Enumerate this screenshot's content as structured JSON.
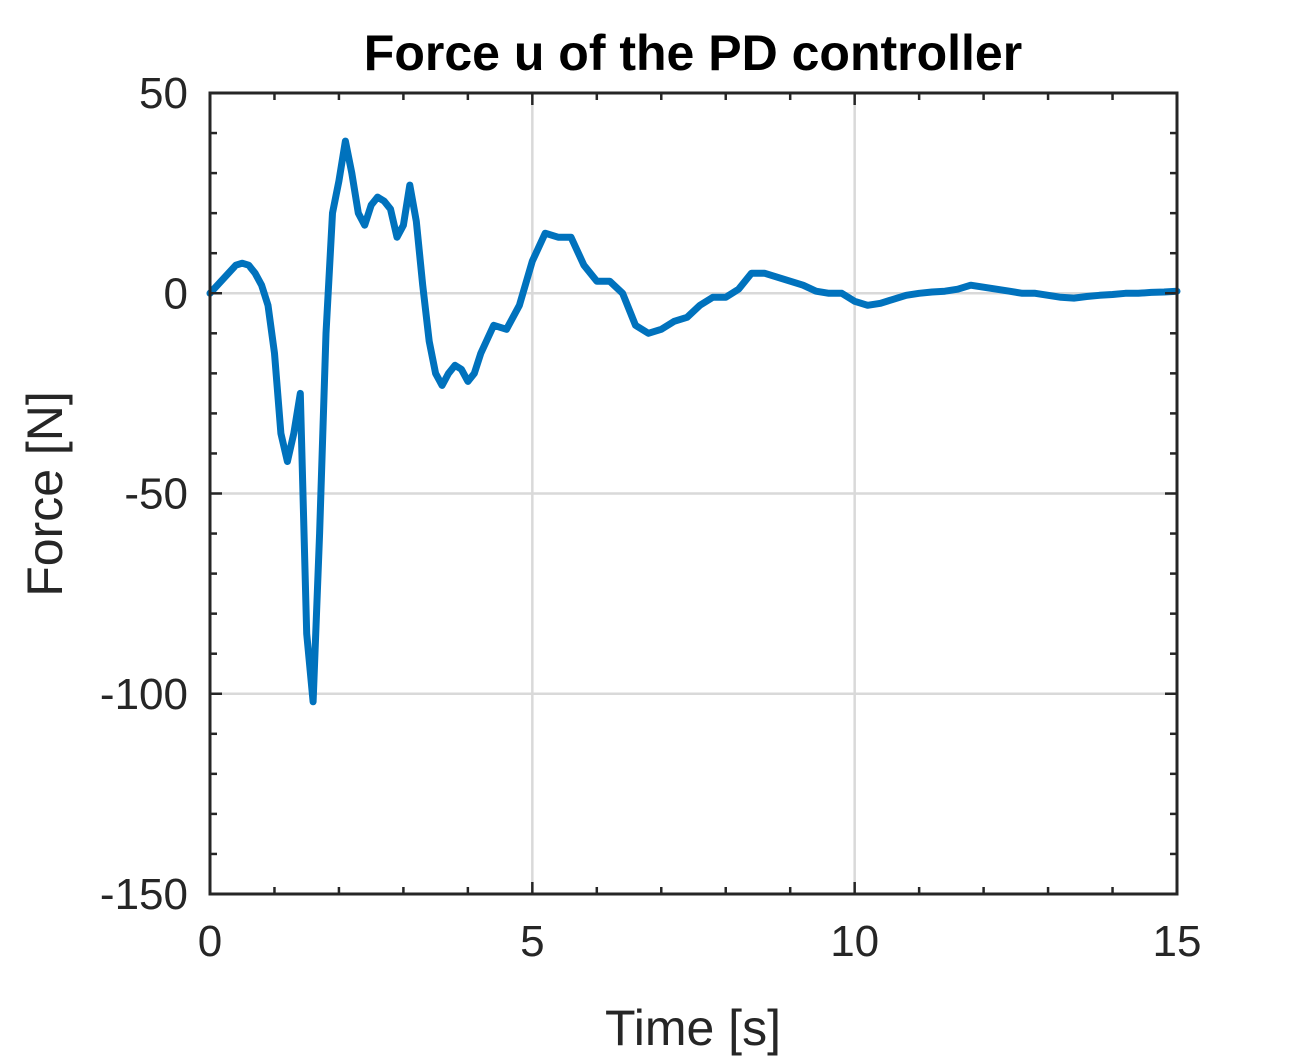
{
  "chart_data": {
    "type": "line",
    "title": "Force u of the PD controller",
    "xlabel": "Time [s]",
    "ylabel": "Force [N]",
    "xlim": [
      0,
      15
    ],
    "ylim": [
      -150,
      50
    ],
    "xticks": [
      0,
      5,
      10,
      15
    ],
    "yticks": [
      -150,
      -100,
      -50,
      0,
      50
    ],
    "xtick_labels": [
      "0",
      "5",
      "10",
      "15"
    ],
    "ytick_labels": [
      "-150",
      "-100",
      "-50",
      "0",
      "50"
    ],
    "grid": true,
    "line_color": "#0072BD",
    "series": [
      {
        "x": [
          0,
          0.2,
          0.4,
          0.5,
          0.6,
          0.7,
          0.8,
          0.9,
          1.0,
          1.1,
          1.2,
          1.3,
          1.4,
          1.5,
          1.6,
          1.7,
          1.8,
          1.9,
          2.0,
          2.1,
          2.2,
          2.3,
          2.4,
          2.5,
          2.6,
          2.7,
          2.8,
          2.9,
          3.0,
          3.1,
          3.2,
          3.3,
          3.4,
          3.5,
          3.6,
          3.7,
          3.8,
          3.9,
          4.0,
          4.1,
          4.2,
          4.4,
          4.6,
          4.8,
          5.0,
          5.2,
          5.4,
          5.6,
          5.8,
          6.0,
          6.2,
          6.4,
          6.6,
          6.8,
          7.0,
          7.2,
          7.4,
          7.6,
          7.8,
          8.0,
          8.2,
          8.4,
          8.6,
          8.8,
          9.0,
          9.2,
          9.4,
          9.6,
          9.8,
          10.0,
          10.2,
          10.4,
          10.6,
          10.8,
          11.0,
          11.2,
          11.4,
          11.6,
          11.8,
          12.0,
          12.2,
          12.4,
          12.6,
          12.8,
          13.0,
          13.2,
          13.4,
          13.6,
          13.8,
          14.0,
          14.2,
          14.4,
          14.6,
          14.8,
          15.0
        ],
        "y": [
          0,
          3.5,
          7,
          7.5,
          7,
          5,
          2,
          -3,
          -15,
          -35,
          -42,
          -35,
          -25,
          -85,
          -102,
          -60,
          -10,
          20,
          28,
          38,
          30,
          20,
          17,
          22,
          24,
          23,
          21,
          14,
          17,
          27,
          18,
          2,
          -12,
          -20,
          -23,
          -20,
          -18,
          -19,
          -22,
          -20,
          -15,
          -8,
          -9,
          -3,
          8,
          15,
          14,
          14,
          7,
          3,
          3,
          0,
          -8,
          -10,
          -9,
          -7,
          -6,
          -3,
          -1,
          -1,
          1,
          5,
          5,
          4,
          3,
          2,
          0.5,
          0,
          0,
          -2,
          -3,
          -2.5,
          -1.5,
          -0.5,
          0,
          0.3,
          0.5,
          1,
          2,
          1.5,
          1,
          0.5,
          0,
          0,
          -0.5,
          -1,
          -1.2,
          -0.8,
          -0.5,
          -0.3,
          0,
          0,
          0.2,
          0.3,
          0.5
        ]
      }
    ]
  }
}
